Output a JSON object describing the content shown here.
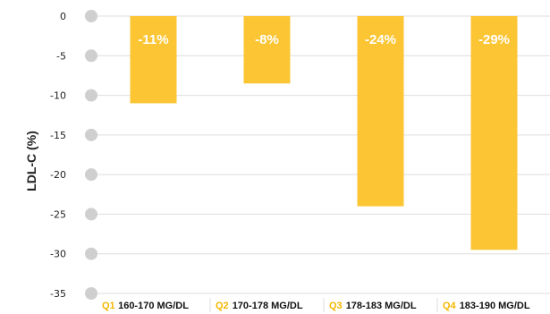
{
  "chart_data": {
    "type": "bar",
    "ylabel": "LDL-C (%)",
    "ylim": [
      -35,
      0
    ],
    "yticks": [
      "0",
      "-5",
      "-10",
      "-15",
      "-20",
      "-25",
      "-30",
      "-35"
    ],
    "ytick_values": [
      0,
      -5,
      -10,
      -15,
      -20,
      -25,
      -30,
      -35
    ],
    "categories": [
      {
        "code": "Q1",
        "range": "160-170 MG/DL"
      },
      {
        "code": "Q2",
        "range": "170-178 MG/DL"
      },
      {
        "code": "Q3",
        "range": "178-183 MG/DL"
      },
      {
        "code": "Q4",
        "range": "183-190 MG/DL"
      }
    ],
    "values": [
      -11,
      -8.5,
      -24,
      -29.5
    ],
    "data_labels": [
      "-11%",
      "-8%",
      "-24%",
      "-29%"
    ],
    "grid": true,
    "colors": {
      "bar": "#FBC534",
      "marker": "#CFCFCF",
      "grid": "#DDDDDD",
      "category_code": "#F5B700"
    }
  }
}
